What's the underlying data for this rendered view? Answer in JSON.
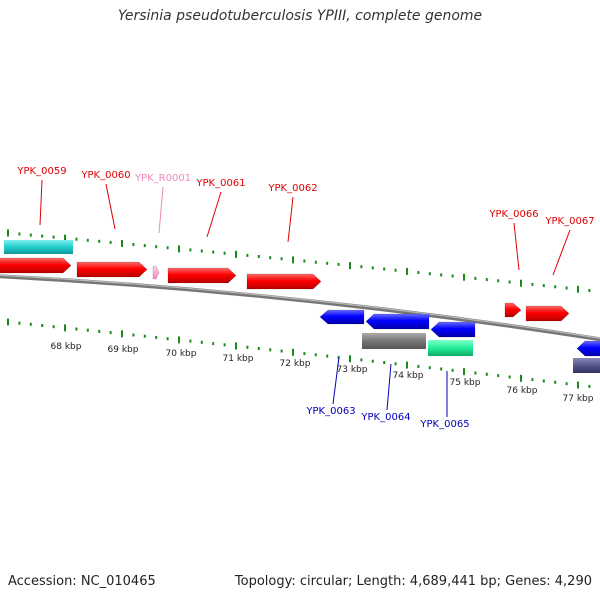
{
  "title": "Yersinia pseudotuberculosis YPIII, complete genome",
  "footer": {
    "accession": "Accession: NC_010465",
    "topology": "Topology: circular; Length: 4,689,441 bp; Genes: 4,290"
  },
  "colors": {
    "forward_gene": "#ff0000",
    "reverse_gene": "#0000ff",
    "rna_gene": "#ff99cc",
    "label_forward": "#dd0000",
    "label_reverse": "#0000bb",
    "label_rna": "#ee88bb",
    "backbone": "#888888",
    "tick": "#1a8a1a"
  },
  "axis": {
    "unit": "kbp",
    "tick_labels": [
      "68 kbp",
      "69 kbp",
      "70 kbp",
      "71 kbp",
      "72 kbp",
      "73 kbp",
      "74 kbp",
      "75 kbp",
      "76 kbp",
      "77 kbp"
    ]
  },
  "genes": {
    "forward": [
      {
        "label": "YPK_0059",
        "type": "gene"
      },
      {
        "label": "YPK_0060",
        "type": "gene"
      },
      {
        "label": "YPK_R0001",
        "type": "rna"
      },
      {
        "label": "YPK_0061",
        "type": "gene"
      },
      {
        "label": "YPK_0062",
        "type": "gene"
      },
      {
        "label": "YPK_0066",
        "type": "gene"
      },
      {
        "label": "YPK_0067",
        "type": "gene"
      }
    ],
    "reverse": [
      {
        "label": "YPK_0063",
        "type": "gene"
      },
      {
        "label": "YPK_0064",
        "type": "gene"
      },
      {
        "label": "YPK_0065",
        "type": "gene"
      }
    ]
  }
}
